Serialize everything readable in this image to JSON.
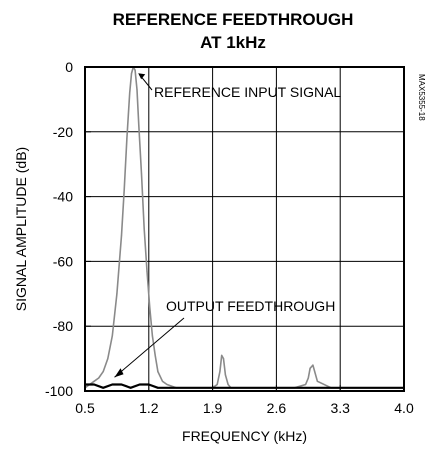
{
  "chart_data": {
    "type": "line",
    "title_line1": "REFERENCE FEEDTHROUGH",
    "title_line2": "AT 1kHz",
    "xlabel": "FREQUENCY (kHz)",
    "ylabel": "SIGNAL AMPLITUDE (dB)",
    "xlim": [
      0.5,
      4.0
    ],
    "ylim": [
      -100,
      0
    ],
    "x_ticks": [
      "0.5",
      "1.2",
      "1.9",
      "2.6",
      "3.3",
      "4.0"
    ],
    "y_ticks": [
      "0",
      "-20",
      "-40",
      "-60",
      "-80",
      "-100"
    ],
    "grid": true,
    "annotations": [
      {
        "text": "REFERENCE INPUT SIGNAL",
        "points_to": [
          1.04,
          -1
        ]
      },
      {
        "text": "OUTPUT FEEDTHROUGH",
        "points_to": [
          0.78,
          -97
        ]
      }
    ],
    "figure_code": "MAX5355-18",
    "series": [
      {
        "x": [
          0.5,
          0.55,
          0.6,
          0.65,
          0.7,
          0.75,
          0.8,
          0.85,
          0.9,
          0.93,
          0.96,
          0.99,
          1.01,
          1.03,
          1.05,
          1.07,
          1.09,
          1.12,
          1.15,
          1.18,
          1.21,
          1.24,
          1.27,
          1.3,
          1.35,
          1.4,
          1.5,
          1.6,
          1.7,
          1.8,
          1.9,
          1.95,
          1.98,
          2.0,
          2.02,
          2.04,
          2.07,
          2.1,
          2.2,
          2.4,
          2.6,
          2.8,
          2.92,
          2.95,
          2.97,
          3.0,
          3.05,
          3.2,
          3.4,
          3.6,
          3.8,
          4.0
        ],
        "values": [
          -99,
          -98,
          -97,
          -96,
          -94,
          -90,
          -83,
          -70,
          -52,
          -38,
          -22,
          -8,
          -2,
          0,
          -1,
          -7,
          -18,
          -33,
          -50,
          -63,
          -74,
          -83,
          -89,
          -94,
          -97,
          -98,
          -99,
          -99,
          -99,
          -99,
          -99,
          -98,
          -94,
          -89,
          -90,
          -95,
          -98,
          -99,
          -99,
          -99,
          -99,
          -99,
          -98,
          -96,
          -93,
          -92,
          -97,
          -99,
          -99,
          -99,
          -99,
          -99
        ]
      },
      {
        "x": [
          0.5,
          0.6,
          0.7,
          0.8,
          0.9,
          1.0,
          1.1,
          1.2,
          1.3,
          1.4,
          1.5,
          1.6,
          1.7,
          1.8,
          1.9,
          2.0,
          2.1,
          2.2,
          2.3,
          2.4,
          2.5,
          2.6,
          2.7,
          2.8,
          2.9,
          3.0,
          3.1,
          3.2,
          3.3,
          3.4,
          3.5,
          3.6,
          3.7,
          3.8,
          3.9,
          4.0
        ],
        "values": [
          -98,
          -98,
          -99,
          -98,
          -98,
          -99,
          -98,
          -98,
          -99,
          -99,
          -99,
          -99,
          -99,
          -99,
          -99,
          -99,
          -99,
          -99,
          -99,
          -99,
          -99,
          -99,
          -99,
          -99,
          -99,
          -99,
          -99,
          -99,
          -99,
          -99,
          -99,
          -99,
          -99,
          -99,
          -99,
          -99
        ]
      }
    ]
  }
}
